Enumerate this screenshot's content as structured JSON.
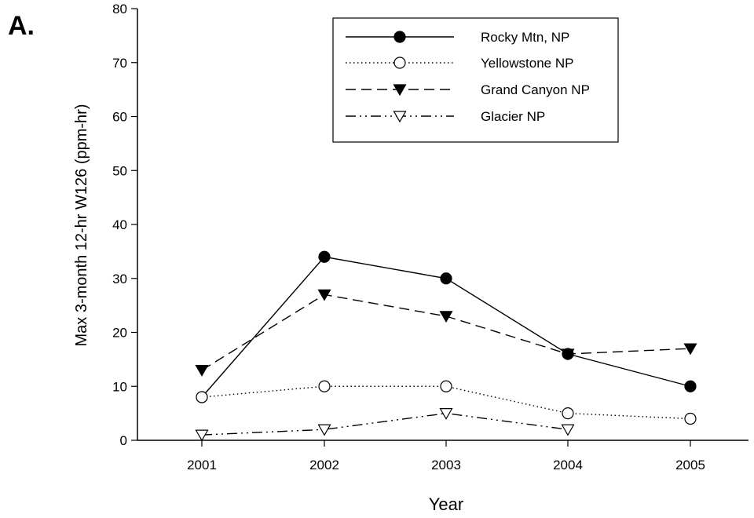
{
  "panel_label": "A.",
  "chart_data": {
    "type": "line",
    "title": "",
    "xlabel": "Year",
    "ylabel": "Max 3-month 12-hr W126 (ppm-hr)",
    "x": [
      "2001",
      "2002",
      "2003",
      "2004",
      "2005"
    ],
    "ylim": [
      0,
      80
    ],
    "yticks": [
      0,
      10,
      20,
      30,
      40,
      50,
      60,
      70,
      80
    ],
    "grid": false,
    "legend_position": "top-right",
    "series": [
      {
        "name": "Rocky Mtn, NP",
        "values": [
          8,
          34,
          30,
          16,
          10
        ],
        "line_style": "solid",
        "marker": "filled-circle",
        "color": "#000000"
      },
      {
        "name": "Yellowstone NP",
        "values": [
          8,
          10,
          10,
          5,
          4
        ],
        "line_style": "dotted",
        "marker": "open-circle",
        "color": "#000000"
      },
      {
        "name": "Grand Canyon NP",
        "values": [
          13,
          27,
          23,
          16,
          17
        ],
        "line_style": "dashed",
        "marker": "filled-triangle-down",
        "color": "#000000"
      },
      {
        "name": "Glacier NP",
        "values": [
          1,
          2,
          5,
          2,
          null
        ],
        "line_style": "dash-dot-dot",
        "marker": "open-triangle-down",
        "color": "#000000"
      }
    ]
  }
}
